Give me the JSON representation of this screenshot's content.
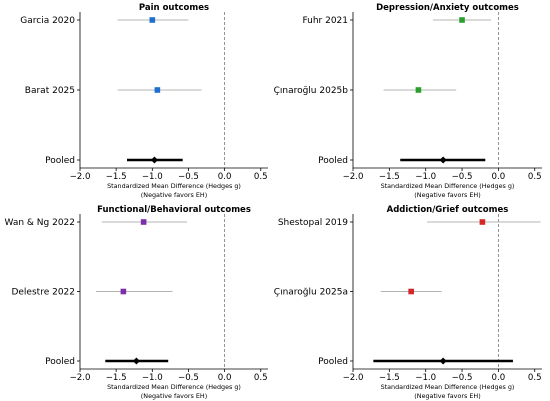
{
  "chart_data": [
    {
      "type": "forest",
      "title": "Pain outcomes",
      "xlabel": "Standardized Mean Difference (Hedges g)",
      "xlabel_note": "(Negative favors EH)",
      "xlim": [
        -2.0,
        0.6
      ],
      "xticks": [
        "−2.0",
        "−1.5",
        "−1.0",
        "−0.5",
        "0.0",
        "0.5"
      ],
      "null_line": 0,
      "rows": [
        {
          "label": "Garcia 2020",
          "estimate": -1.0,
          "ci": [
            -1.48,
            -0.5
          ],
          "color": "#1f6fd1",
          "pooled": false
        },
        {
          "label": "Barat 2025",
          "estimate": -0.93,
          "ci": [
            -1.48,
            -0.32
          ],
          "color": "#1f6fd1",
          "pooled": false
        },
        {
          "label": "Pooled",
          "estimate": -0.97,
          "ci": [
            -1.35,
            -0.58
          ],
          "color": "#000000",
          "pooled": true
        }
      ]
    },
    {
      "type": "forest",
      "title": "Depression/Anxiety outcomes",
      "xlabel": "Standardized Mean Difference (Hedges g)",
      "xlabel_note": "(Negative favors EH)",
      "xlim": [
        -2.0,
        0.6
      ],
      "xticks": [
        "−2.0",
        "−1.5",
        "−1.0",
        "−0.5",
        "0.0",
        "0.5"
      ],
      "null_line": 0,
      "rows": [
        {
          "label": "Fuhr 2021",
          "estimate": -0.5,
          "ci": [
            -0.9,
            -0.1
          ],
          "color": "#2ca02c",
          "pooled": false
        },
        {
          "label": "Çınaroğlu 2025b",
          "estimate": -1.1,
          "ci": [
            -1.58,
            -0.58
          ],
          "color": "#2ca02c",
          "pooled": false
        },
        {
          "label": "Pooled",
          "estimate": -0.76,
          "ci": [
            -1.35,
            -0.18
          ],
          "color": "#000000",
          "pooled": true
        }
      ]
    },
    {
      "type": "forest",
      "title": "Functional/Behavioral outcomes",
      "xlabel": "Standardized Mean Difference (Hedges g)",
      "xlabel_note": "(Negative favors EH)",
      "xlim": [
        -2.0,
        0.6
      ],
      "xticks": [
        "−2.0",
        "−1.5",
        "−1.0",
        "−0.5",
        "0.0",
        "0.5"
      ],
      "null_line": 0,
      "rows": [
        {
          "label": "Wan & Ng 2022",
          "estimate": -1.12,
          "ci": [
            -1.7,
            -0.52
          ],
          "color": "#7b2fa8",
          "pooled": false
        },
        {
          "label": "Delestre 2022",
          "estimate": -1.4,
          "ci": [
            -1.78,
            -0.72
          ],
          "color": "#7b2fa8",
          "pooled": false
        },
        {
          "label": "Pooled",
          "estimate": -1.22,
          "ci": [
            -1.65,
            -0.78
          ],
          "color": "#000000",
          "pooled": true
        }
      ]
    },
    {
      "type": "forest",
      "title": "Addiction/Grief outcomes",
      "xlabel": "Standardized Mean Difference (Hedges g)",
      "xlabel_note": "(Negative favors EH)",
      "xlim": [
        -2.0,
        0.6
      ],
      "xticks": [
        "−2.0",
        "−1.5",
        "−1.0",
        "−0.5",
        "0.0",
        "0.5"
      ],
      "null_line": 0,
      "rows": [
        {
          "label": "Shestopal 2019",
          "estimate": -0.22,
          "ci": [
            -0.98,
            0.58
          ],
          "color": "#d62728",
          "pooled": false
        },
        {
          "label": "Çınaroğlu 2025a",
          "estimate": -1.2,
          "ci": [
            -1.62,
            -0.78
          ],
          "color": "#d62728",
          "pooled": false
        },
        {
          "label": "Pooled",
          "estimate": -0.76,
          "ci": [
            -1.72,
            0.2
          ],
          "color": "#000000",
          "pooled": true
        }
      ]
    }
  ]
}
